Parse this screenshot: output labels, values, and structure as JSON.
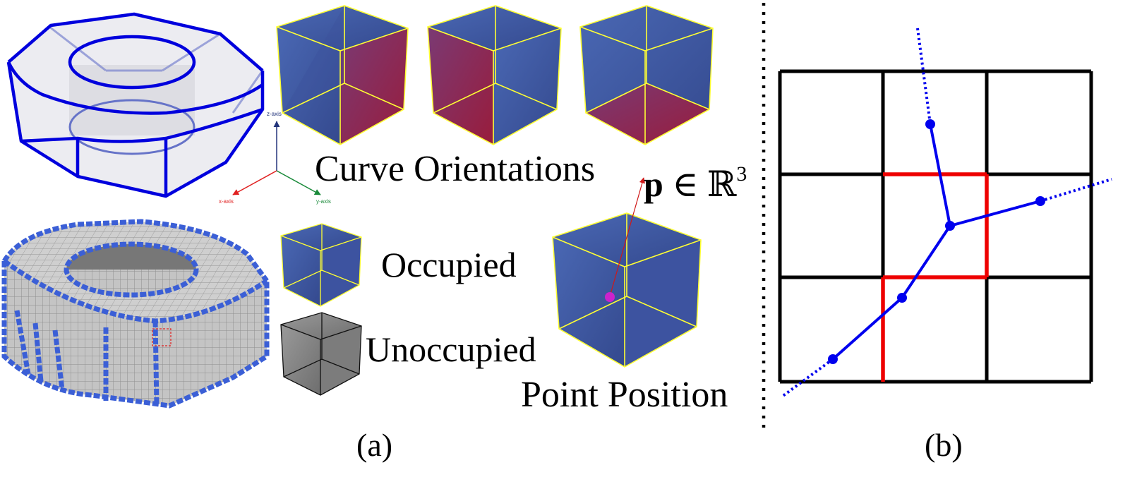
{
  "panel_a": {
    "caption": "(a)",
    "axes": {
      "z_label": "z-axis",
      "x_label": "x-axis",
      "y_label": "y-axis"
    },
    "labels": {
      "curve_orientations": "Curve Orientations",
      "point_formula_bold": "p",
      "point_formula_rest": " ∈ ℝ",
      "point_formula_sup": "3",
      "occupied": "Occupied",
      "unoccupied": "Unoccupied",
      "point_position": "Point Position"
    }
  },
  "panel_b": {
    "caption": "(b)"
  },
  "colors": {
    "cube_blue": "#3f5aa6",
    "cube_red": "#8e1f48",
    "cube_edge": "#ffff33",
    "gray_cube": "#8a8a8a",
    "curve_blue": "#0000ee",
    "highlight_red": "#ee0000",
    "point_magenta": "#cc22cc",
    "voxel_blue": "#3b5fd6",
    "voxel_gray": "#c8c8c8"
  }
}
